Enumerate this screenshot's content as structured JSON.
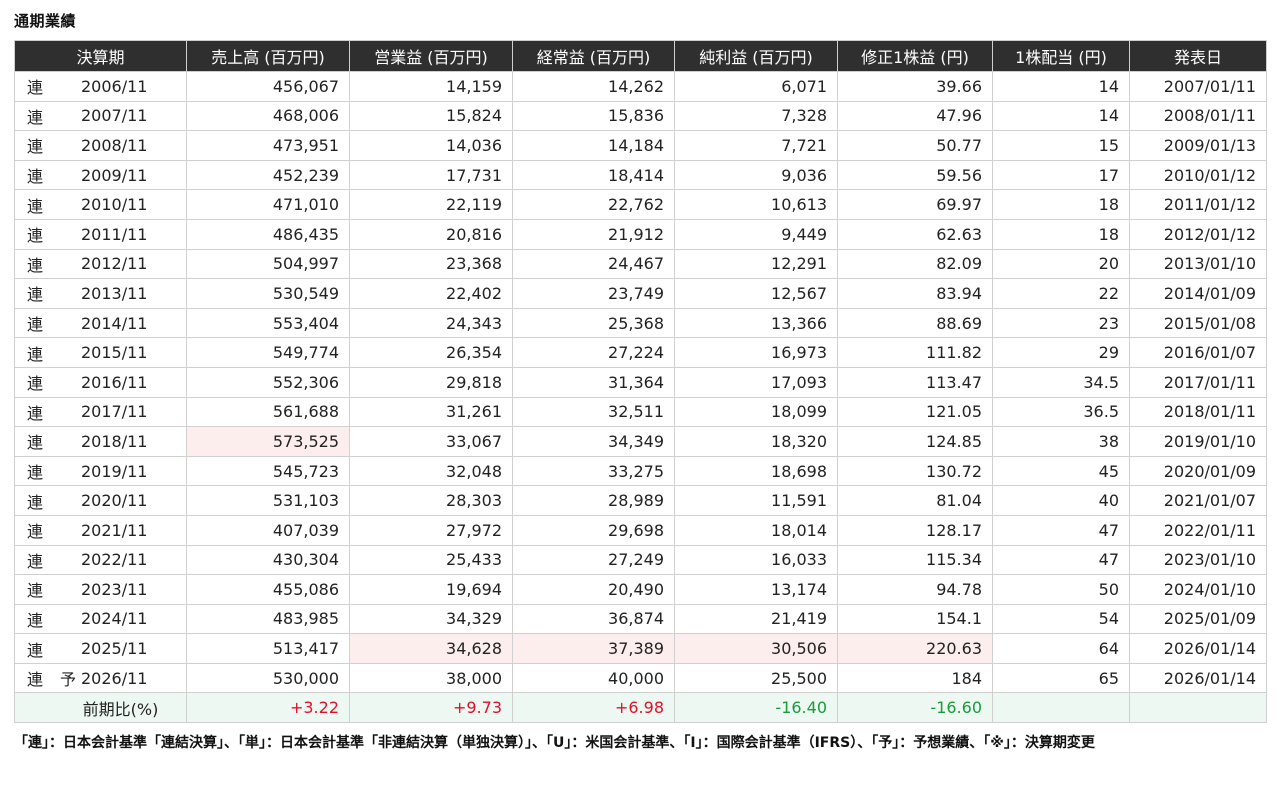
{
  "section_title": "通期業績",
  "headers": [
    "決算期",
    "売上高 (百万円)",
    "営業益 (百万円)",
    "経常益 (百万円)",
    "純利益 (百万円)",
    "修正1株益 (円)",
    "1株配当 (円)",
    "発表日"
  ],
  "rows": [
    {
      "mark": "連",
      "fc": "",
      "period": "2006/11",
      "sales": "456,067",
      "op": "14,159",
      "ord": "14,262",
      "net": "6,071",
      "eps": "39.66",
      "div": "14",
      "date": "2007/01/11"
    },
    {
      "mark": "連",
      "fc": "",
      "period": "2007/11",
      "sales": "468,006",
      "op": "15,824",
      "ord": "15,836",
      "net": "7,328",
      "eps": "47.96",
      "div": "14",
      "date": "2008/01/11"
    },
    {
      "mark": "連",
      "fc": "",
      "period": "2008/11",
      "sales": "473,951",
      "op": "14,036",
      "ord": "14,184",
      "net": "7,721",
      "eps": "50.77",
      "div": "15",
      "date": "2009/01/13"
    },
    {
      "mark": "連",
      "fc": "",
      "period": "2009/11",
      "sales": "452,239",
      "op": "17,731",
      "ord": "18,414",
      "net": "9,036",
      "eps": "59.56",
      "div": "17",
      "date": "2010/01/12"
    },
    {
      "mark": "連",
      "fc": "",
      "period": "2010/11",
      "sales": "471,010",
      "op": "22,119",
      "ord": "22,762",
      "net": "10,613",
      "eps": "69.97",
      "div": "18",
      "date": "2011/01/12"
    },
    {
      "mark": "連",
      "fc": "",
      "period": "2011/11",
      "sales": "486,435",
      "op": "20,816",
      "ord": "21,912",
      "net": "9,449",
      "eps": "62.63",
      "div": "18",
      "date": "2012/01/12"
    },
    {
      "mark": "連",
      "fc": "",
      "period": "2012/11",
      "sales": "504,997",
      "op": "23,368",
      "ord": "24,467",
      "net": "12,291",
      "eps": "82.09",
      "div": "20",
      "date": "2013/01/10"
    },
    {
      "mark": "連",
      "fc": "",
      "period": "2013/11",
      "sales": "530,549",
      "op": "22,402",
      "ord": "23,749",
      "net": "12,567",
      "eps": "83.94",
      "div": "22",
      "date": "2014/01/09"
    },
    {
      "mark": "連",
      "fc": "",
      "period": "2014/11",
      "sales": "553,404",
      "op": "24,343",
      "ord": "25,368",
      "net": "13,366",
      "eps": "88.69",
      "div": "23",
      "date": "2015/01/08"
    },
    {
      "mark": "連",
      "fc": "",
      "period": "2015/11",
      "sales": "549,774",
      "op": "26,354",
      "ord": "27,224",
      "net": "16,973",
      "eps": "111.82",
      "div": "29",
      "date": "2016/01/07"
    },
    {
      "mark": "連",
      "fc": "",
      "period": "2016/11",
      "sales": "552,306",
      "op": "29,818",
      "ord": "31,364",
      "net": "17,093",
      "eps": "113.47",
      "div": "34.5",
      "date": "2017/01/11"
    },
    {
      "mark": "連",
      "fc": "",
      "period": "2017/11",
      "sales": "561,688",
      "op": "31,261",
      "ord": "32,511",
      "net": "18,099",
      "eps": "121.05",
      "div": "36.5",
      "date": "2018/01/11"
    },
    {
      "mark": "連",
      "fc": "",
      "period": "2018/11",
      "sales": "573,525",
      "op": "33,067",
      "ord": "34,349",
      "net": "18,320",
      "eps": "124.85",
      "div": "38",
      "date": "2019/01/10"
    },
    {
      "mark": "連",
      "fc": "",
      "period": "2019/11",
      "sales": "545,723",
      "op": "32,048",
      "ord": "33,275",
      "net": "18,698",
      "eps": "130.72",
      "div": "45",
      "date": "2020/01/09"
    },
    {
      "mark": "連",
      "fc": "",
      "period": "2020/11",
      "sales": "531,103",
      "op": "28,303",
      "ord": "28,989",
      "net": "11,591",
      "eps": "81.04",
      "div": "40",
      "date": "2021/01/07"
    },
    {
      "mark": "連",
      "fc": "",
      "period": "2021/11",
      "sales": "407,039",
      "op": "27,972",
      "ord": "29,698",
      "net": "18,014",
      "eps": "128.17",
      "div": "47",
      "date": "2022/01/11"
    },
    {
      "mark": "連",
      "fc": "",
      "period": "2022/11",
      "sales": "430,304",
      "op": "25,433",
      "ord": "27,249",
      "net": "16,033",
      "eps": "115.34",
      "div": "47",
      "date": "2023/01/10"
    },
    {
      "mark": "連",
      "fc": "",
      "period": "2023/11",
      "sales": "455,086",
      "op": "19,694",
      "ord": "20,490",
      "net": "13,174",
      "eps": "94.78",
      "div": "50",
      "date": "2024/01/10"
    },
    {
      "mark": "連",
      "fc": "",
      "period": "2024/11",
      "sales": "483,985",
      "op": "34,329",
      "ord": "36,874",
      "net": "21,419",
      "eps": "154.1",
      "div": "54",
      "date": "2025/01/09"
    },
    {
      "mark": "連",
      "fc": "",
      "period": "2025/11",
      "sales": "513,417",
      "op": "34,628",
      "ord": "37,389",
      "net": "30,506",
      "eps": "220.63",
      "div": "64",
      "date": "2026/01/14"
    },
    {
      "mark": "連",
      "fc": "予",
      "period": "2026/11",
      "sales": "530,000",
      "op": "38,000",
      "ord": "40,000",
      "net": "25,500",
      "eps": "184",
      "div": "65",
      "date": "2026/01/14"
    }
  ],
  "ratio_row": {
    "label": "前期比(%)",
    "sales": "+3.22",
    "op": "+9.73",
    "ord": "+6.98",
    "net": "-16.40",
    "eps": "-16.60",
    "div": "",
    "date": ""
  },
  "colors": {
    "header_bg": "#2f2f2f",
    "highlight": "#fdeeee",
    "ratio_bg": "#eef8f3",
    "positive": "#e0102a",
    "negative": "#1a9a3a"
  },
  "footnote": "「連」：日本会計基準「連結決算」、「単」：日本会計基準「非連結決算（単独決算）」、「U」：米国会計基準、「I」：国際会計基準（IFRS）、「予」：予想業績、「※」：決算期変更"
}
